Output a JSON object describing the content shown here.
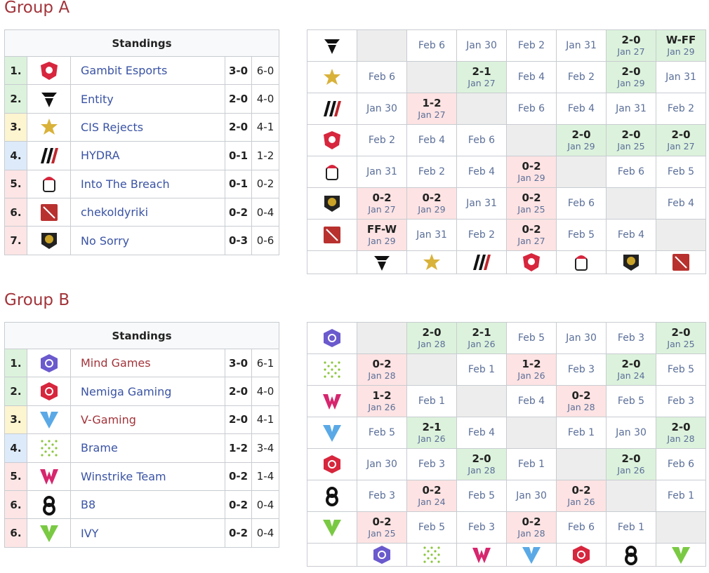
{
  "groups": [
    {
      "title": "Group A",
      "standings": {
        "header": "Standings",
        "rows": [
          {
            "rank": "1.",
            "team": "Gambit Esports",
            "series": "3-0",
            "games": "6-0"
          },
          {
            "rank": "2.",
            "team": "Entity",
            "series": "2-0",
            "games": "4-0"
          },
          {
            "rank": "3.",
            "team": "CIS Rejects",
            "series": "2-0",
            "games": "4-1"
          },
          {
            "rank": "4.",
            "team": "HYDRA",
            "series": "0-1",
            "games": "1-2"
          },
          {
            "rank": "5.",
            "team": "Into The Breach",
            "series": "0-1",
            "games": "0-2"
          },
          {
            "rank": "6.",
            "team": "chekoldyriki",
            "series": "0-2",
            "games": "0-4"
          },
          {
            "rank": "7.",
            "team": "No Sorry",
            "series": "0-3",
            "games": "0-6"
          }
        ]
      },
      "matrix": [
        [
          null,
          {
            "date": "Feb 6"
          },
          {
            "date": "Jan 30"
          },
          {
            "date": "Feb 2"
          },
          {
            "date": "Jan 31"
          },
          {
            "score": "2-0",
            "date": "Jan 27"
          },
          {
            "score": "W-FF",
            "date": "Jan 29"
          }
        ],
        [
          {
            "date": "Feb 6"
          },
          null,
          {
            "score": "2-1",
            "date": "Jan 27"
          },
          {
            "date": "Feb 4"
          },
          {
            "date": "Feb 2"
          },
          {
            "score": "2-0",
            "date": "Jan 29"
          },
          {
            "date": "Jan 31"
          }
        ],
        [
          {
            "date": "Jan 30"
          },
          {
            "score": "1-2",
            "date": "Jan 27"
          },
          null,
          {
            "date": "Feb 6"
          },
          {
            "date": "Feb 4"
          },
          {
            "date": "Jan 31"
          },
          {
            "date": "Feb 2"
          }
        ],
        [
          {
            "date": "Feb 2"
          },
          {
            "date": "Feb 4"
          },
          {
            "date": "Feb 6"
          },
          null,
          {
            "score": "2-0",
            "date": "Jan 29"
          },
          {
            "score": "2-0",
            "date": "Jan 25"
          },
          {
            "score": "2-0",
            "date": "Jan 27"
          }
        ],
        [
          {
            "date": "Jan 31"
          },
          {
            "date": "Feb 2"
          },
          {
            "date": "Feb 4"
          },
          {
            "score": "0-2",
            "date": "Jan 29"
          },
          null,
          {
            "date": "Feb 6"
          },
          {
            "date": "Feb 5"
          }
        ],
        [
          {
            "score": "0-2",
            "date": "Jan 27"
          },
          {
            "score": "0-2",
            "date": "Jan 29"
          },
          {
            "date": "Jan 31"
          },
          {
            "score": "0-2",
            "date": "Jan 25"
          },
          {
            "date": "Feb 6"
          },
          null,
          {
            "date": "Feb 4"
          }
        ],
        [
          {
            "score": "FF-W",
            "date": "Jan 29"
          },
          {
            "date": "Jan 31"
          },
          {
            "date": "Feb 2"
          },
          {
            "score": "0-2",
            "date": "Jan 27"
          },
          {
            "date": "Feb 5"
          },
          {
            "date": "Feb 4"
          },
          null
        ]
      ]
    },
    {
      "title": "Group B",
      "standings": {
        "header": "Standings",
        "rows": [
          {
            "rank": "1.",
            "team": "Mind Games",
            "series": "3-0",
            "games": "6-1"
          },
          {
            "rank": "2.",
            "team": "Nemiga Gaming",
            "series": "2-0",
            "games": "4-0"
          },
          {
            "rank": "3.",
            "team": "V-Gaming",
            "series": "2-0",
            "games": "4-1"
          },
          {
            "rank": "4.",
            "team": "Brame",
            "series": "1-2",
            "games": "3-4"
          },
          {
            "rank": "5.",
            "team": "Winstrike Team",
            "series": "0-2",
            "games": "1-4"
          },
          {
            "rank": "6.",
            "team": "B8",
            "series": "0-2",
            "games": "0-4"
          },
          {
            "rank": "6.",
            "team": "IVY",
            "series": "0-2",
            "games": "0-4"
          }
        ]
      },
      "matrix": [
        [
          null,
          {
            "score": "2-0",
            "date": "Jan 28"
          },
          {
            "score": "2-1",
            "date": "Jan 26"
          },
          {
            "date": "Feb 5"
          },
          {
            "date": "Jan 30"
          },
          {
            "date": "Feb 3"
          },
          {
            "score": "2-0",
            "date": "Jan 25"
          }
        ],
        [
          {
            "score": "0-2",
            "date": "Jan 28"
          },
          null,
          {
            "date": "Feb 1"
          },
          {
            "score": "1-2",
            "date": "Jan 26"
          },
          {
            "date": "Feb 3"
          },
          {
            "score": "2-0",
            "date": "Jan 24"
          },
          {
            "date": "Feb 5"
          }
        ],
        [
          {
            "score": "1-2",
            "date": "Jan 26"
          },
          {
            "date": "Feb 1"
          },
          null,
          {
            "date": "Feb 4"
          },
          {
            "score": "0-2",
            "date": "Jan 28"
          },
          {
            "date": "Feb 5"
          },
          {
            "date": "Feb 3"
          }
        ],
        [
          {
            "date": "Feb 5"
          },
          {
            "score": "2-1",
            "date": "Jan 26"
          },
          {
            "date": "Feb 4"
          },
          null,
          {
            "date": "Feb 1"
          },
          {
            "date": "Jan 30"
          },
          {
            "score": "2-0",
            "date": "Jan 28"
          }
        ],
        [
          {
            "date": "Jan 30"
          },
          {
            "date": "Feb 3"
          },
          {
            "score": "2-0",
            "date": "Jan 28"
          },
          {
            "date": "Feb 1"
          },
          null,
          {
            "score": "2-0",
            "date": "Jan 26"
          },
          {
            "date": "Feb 6"
          }
        ],
        [
          {
            "date": "Feb 3"
          },
          {
            "score": "0-2",
            "date": "Jan 24"
          },
          {
            "date": "Feb 5"
          },
          {
            "date": "Jan 30"
          },
          {
            "score": "0-2",
            "date": "Jan 26"
          },
          null,
          {
            "date": "Feb 1"
          }
        ],
        [
          {
            "score": "0-2",
            "date": "Jan 25"
          },
          {
            "date": "Feb 5"
          },
          {
            "date": "Feb 3"
          },
          {
            "score": "0-2",
            "date": "Jan 28"
          },
          {
            "date": "Feb 6"
          },
          {
            "date": "Feb 1"
          },
          null
        ]
      ]
    }
  ]
}
